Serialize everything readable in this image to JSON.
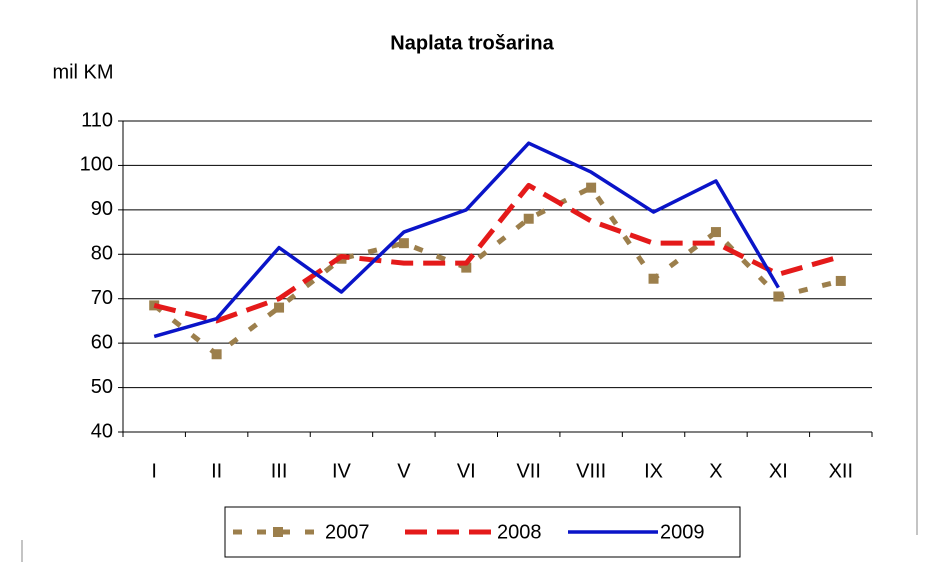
{
  "chart_data": {
    "type": "line",
    "title": "Naplata trošarina",
    "y_label": "mil KM",
    "categories": [
      "I",
      "II",
      "III",
      "IV",
      "V",
      "VI",
      "VII",
      "VIII",
      "IX",
      "X",
      "XI",
      "XII"
    ],
    "series": [
      {
        "name": "2007",
        "color": "#9c7f4c",
        "style": "dotted",
        "values": [
          68.5,
          57.5,
          68,
          79,
          82.5,
          77,
          88,
          95,
          74.5,
          85,
          70.5,
          74
        ]
      },
      {
        "name": "2008",
        "color": "#e41a1a",
        "style": "dashed",
        "values": [
          68.5,
          65,
          70,
          79.5,
          78,
          78,
          95.5,
          87.5,
          82.5,
          82.5,
          75.5,
          79.5
        ]
      },
      {
        "name": "2009",
        "color": "#0a14c8",
        "style": "solid",
        "values": [
          61.5,
          65.5,
          81.5,
          71.5,
          85,
          90,
          105,
          98.5,
          89.5,
          96.5,
          72.5,
          null
        ]
      }
    ],
    "ylim": [
      40,
      110
    ],
    "yticks": [
      40,
      50,
      60,
      70,
      80,
      90,
      100,
      110
    ],
    "grid": true,
    "legend": "bottom"
  }
}
